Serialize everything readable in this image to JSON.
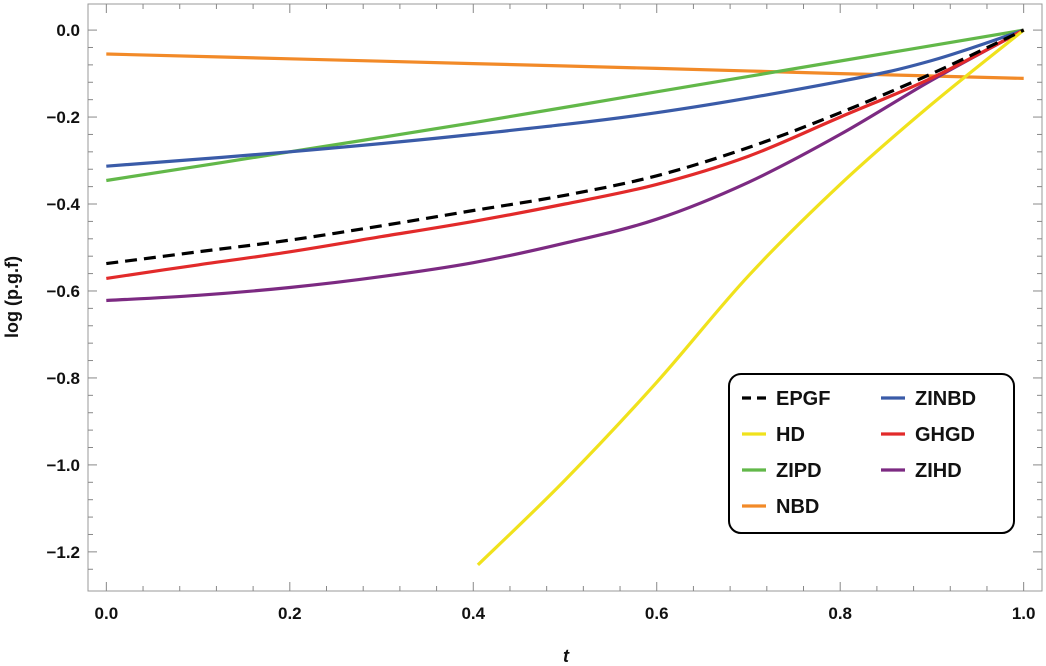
{
  "chart_data": {
    "type": "line",
    "xlabel": "t",
    "ylabel": "log (p.g.f)",
    "xlim": [
      -0.02,
      1.02
    ],
    "ylim": [
      -1.29,
      0.06
    ],
    "x_ticks": [
      0.0,
      0.2,
      0.4,
      0.6,
      0.8,
      1.0
    ],
    "x_tick_labels": [
      "0.0",
      "0.2",
      "0.4",
      "0.6",
      "0.8",
      "1.0"
    ],
    "y_ticks": [
      0.0,
      -0.2,
      -0.4,
      -0.6,
      -0.8,
      -1.0,
      -1.2
    ],
    "y_tick_labels": [
      "0.0",
      "−0.2",
      "−0.4",
      "−0.6",
      "−0.8",
      "−1.0",
      "−1.2"
    ],
    "grid": false,
    "legend_position": "bottom-right",
    "series": [
      {
        "name": "EPGF",
        "color": "#000000",
        "dashed": true,
        "x": [
          0.0,
          0.1,
          0.2,
          0.3,
          0.4,
          0.5,
          0.6,
          0.7,
          0.8,
          0.9,
          1.0
        ],
        "y": [
          -0.537,
          -0.51,
          -0.483,
          -0.45,
          -0.415,
          -0.38,
          -0.335,
          -0.27,
          -0.19,
          -0.1,
          0.0
        ]
      },
      {
        "name": "HD",
        "color": "#f0e21c",
        "dashed": false,
        "x": [
          0.405,
          0.5,
          0.6,
          0.7,
          0.8,
          0.9,
          1.0
        ],
        "y": [
          -1.23,
          -1.035,
          -0.81,
          -0.565,
          -0.355,
          -0.17,
          0.0
        ]
      },
      {
        "name": "ZIPD",
        "color": "#62b849",
        "dashed": false,
        "x": [
          0.0,
          0.2,
          0.4,
          0.6,
          0.8,
          1.0
        ],
        "y": [
          -0.346,
          -0.28,
          -0.213,
          -0.142,
          -0.071,
          0.0
        ]
      },
      {
        "name": "NBD",
        "color": "#f28a28",
        "dashed": false,
        "x": [
          0.0,
          0.2,
          0.4,
          0.6,
          0.8,
          1.0
        ],
        "y": [
          -0.055,
          -0.066,
          -0.077,
          -0.088,
          -0.1,
          -0.111
        ]
      },
      {
        "name": "ZINBD",
        "color": "#3a5ba8",
        "dashed": false,
        "x": [
          0.0,
          0.2,
          0.4,
          0.6,
          0.8,
          0.9,
          1.0
        ],
        "y": [
          -0.313,
          -0.28,
          -0.24,
          -0.19,
          -0.118,
          -0.07,
          0.0
        ]
      },
      {
        "name": "GHGD",
        "color": "#e22a2a",
        "dashed": false,
        "x": [
          0.0,
          0.1,
          0.2,
          0.3,
          0.4,
          0.5,
          0.6,
          0.7,
          0.8,
          0.9,
          1.0
        ],
        "y": [
          -0.571,
          -0.54,
          -0.51,
          -0.475,
          -0.44,
          -0.4,
          -0.355,
          -0.29,
          -0.2,
          -0.11,
          0.0
        ]
      },
      {
        "name": "ZIHD",
        "color": "#7c2a82",
        "dashed": false,
        "x": [
          0.0,
          0.1,
          0.2,
          0.3,
          0.4,
          0.5,
          0.6,
          0.7,
          0.8,
          0.9,
          1.0
        ],
        "y": [
          -0.622,
          -0.61,
          -0.592,
          -0.567,
          -0.535,
          -0.49,
          -0.435,
          -0.35,
          -0.24,
          -0.115,
          0.0
        ]
      }
    ]
  }
}
